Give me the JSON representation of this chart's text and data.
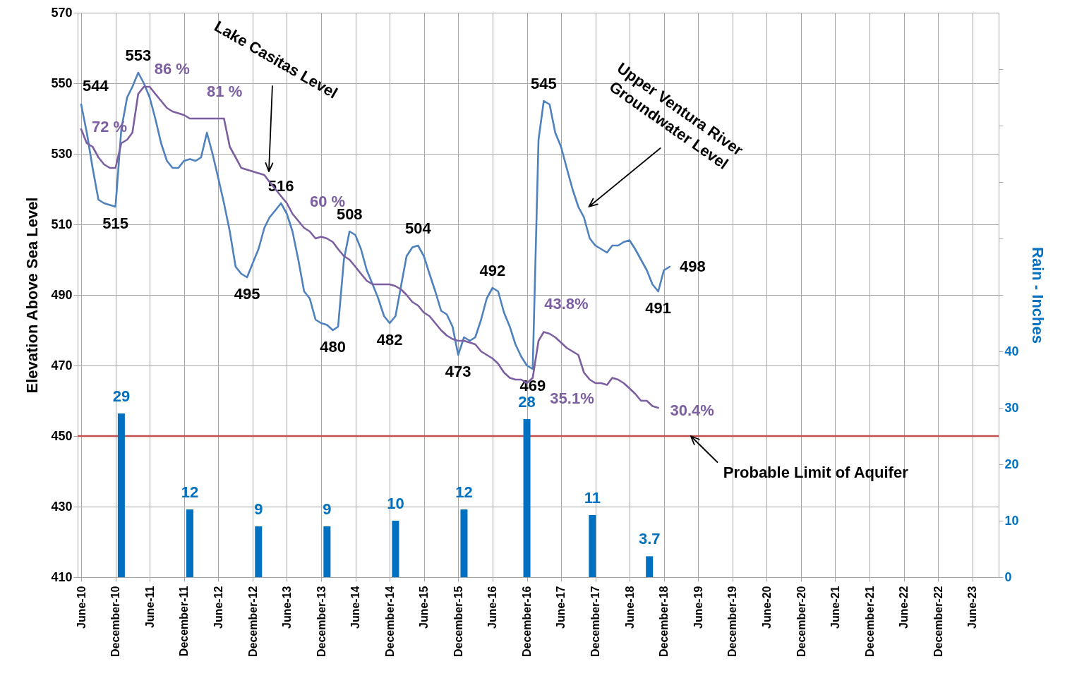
{
  "chart_data": {
    "type": "line",
    "x": [
      "2010-06",
      "2010-07",
      "2010-08",
      "2010-09",
      "2010-10",
      "2010-11",
      "2010-12",
      "2011-01",
      "2011-02",
      "2011-03",
      "2011-04",
      "2011-05",
      "2011-06",
      "2011-07",
      "2011-08",
      "2011-09",
      "2011-10",
      "2011-11",
      "2011-12",
      "2012-01",
      "2012-02",
      "2012-03",
      "2012-04",
      "2012-05",
      "2012-06",
      "2012-07",
      "2012-08",
      "2012-09",
      "2012-10",
      "2012-11",
      "2012-12",
      "2013-01",
      "2013-02",
      "2013-03",
      "2013-04",
      "2013-05",
      "2013-06",
      "2013-07",
      "2013-08",
      "2013-09",
      "2013-10",
      "2013-11",
      "2013-12",
      "2014-01",
      "2014-02",
      "2014-03",
      "2014-04",
      "2014-05",
      "2014-06",
      "2014-07",
      "2014-08",
      "2014-09",
      "2014-10",
      "2014-11",
      "2014-12",
      "2015-01",
      "2015-02",
      "2015-03",
      "2015-04",
      "2015-05",
      "2015-06",
      "2015-07",
      "2015-08",
      "2015-09",
      "2015-10",
      "2015-11",
      "2015-12",
      "2016-01",
      "2016-02",
      "2016-03",
      "2016-04",
      "2016-05",
      "2016-06",
      "2016-07",
      "2016-08",
      "2016-09",
      "2016-10",
      "2016-11",
      "2016-12",
      "2017-01",
      "2017-02",
      "2017-03",
      "2017-04",
      "2017-05",
      "2017-06",
      "2017-07",
      "2017-08",
      "2017-09",
      "2017-10",
      "2017-11",
      "2017-12",
      "2018-01",
      "2018-02",
      "2018-03",
      "2018-04",
      "2018-05",
      "2018-06",
      "2018-07",
      "2018-08",
      "2018-09",
      "2018-10",
      "2018-11",
      "2018-12",
      "2019-01"
    ],
    "series": [
      {
        "color": "#4f81bd",
        "values": [
          544,
          536,
          526,
          517,
          516,
          515.5,
          515,
          537,
          546,
          549,
          553,
          550,
          546,
          540,
          533,
          528,
          526,
          526,
          528,
          528.5,
          528,
          529,
          536,
          530,
          523,
          516,
          508,
          498,
          496,
          495,
          499,
          503,
          509,
          512,
          514,
          516,
          513,
          508,
          500,
          491,
          489,
          483,
          482,
          481.5,
          480,
          481,
          500,
          508,
          507,
          503,
          497,
          493,
          489,
          484,
          482,
          484,
          493,
          501,
          503.5,
          504,
          501,
          496,
          491,
          485.5,
          484.5,
          481,
          473,
          478,
          477,
          478,
          483,
          489,
          492,
          491,
          485,
          481,
          476,
          472.5,
          470,
          469,
          534,
          545,
          544,
          536,
          532,
          526,
          520,
          515,
          512,
          506,
          504,
          503,
          502,
          504,
          504,
          505,
          505.5,
          503,
          500,
          497,
          493,
          491,
          497,
          498
        ],
        "value_labels": [
          "544",
          null,
          null,
          null,
          null,
          null,
          "515",
          null,
          null,
          null,
          "553",
          null,
          null,
          null,
          null,
          null,
          null,
          null,
          null,
          null,
          null,
          null,
          null,
          null,
          null,
          null,
          null,
          null,
          null,
          "495",
          null,
          null,
          null,
          null,
          null,
          "516",
          null,
          null,
          null,
          null,
          null,
          null,
          null,
          null,
          "480",
          null,
          null,
          "508",
          null,
          null,
          null,
          null,
          null,
          null,
          "482",
          null,
          null,
          null,
          null,
          "504",
          null,
          null,
          null,
          null,
          null,
          null,
          "473",
          null,
          null,
          null,
          null,
          null,
          "492",
          null,
          null,
          null,
          null,
          null,
          null,
          "469",
          null,
          "545",
          null,
          null,
          null,
          null,
          null,
          null,
          null,
          null,
          null,
          null,
          null,
          null,
          null,
          null,
          null,
          null,
          null,
          null,
          null,
          "491",
          null,
          "498"
        ]
      },
      {
        "color": "#7b5fa0",
        "values": [
          537,
          533,
          532,
          529,
          527,
          526,
          526,
          533,
          534,
          536,
          547,
          549,
          549,
          547,
          545,
          543,
          542,
          541.5,
          541,
          540,
          540,
          540,
          540,
          540,
          540,
          540,
          532,
          529,
          526,
          525.5,
          525,
          524.5,
          524,
          522,
          520,
          518,
          516,
          513,
          511,
          509,
          508,
          506,
          506.5,
          506,
          505,
          503,
          501,
          500,
          498,
          496,
          494,
          493,
          493,
          493,
          493,
          492.5,
          491.5,
          490,
          488,
          487,
          485,
          484,
          482,
          480,
          478.5,
          477.5,
          477,
          477,
          476.5,
          476,
          474,
          473,
          472,
          470.5,
          468,
          466.5,
          466,
          466,
          465,
          466.5,
          477,
          479.5,
          479,
          478,
          476.5,
          475,
          474,
          473,
          468,
          466,
          465,
          465,
          464.5,
          466.5,
          466,
          465,
          463.5,
          462,
          460,
          460,
          458.5,
          458,
          null,
          null
        ]
      },
      {
        "type": "bar",
        "axis": "y2",
        "color": "#0070c0",
        "x": [
          "2011-01",
          "2012-01",
          "2013-01",
          "2014-01",
          "2015-01",
          "2016-01",
          "2016-12",
          "2017-11-15",
          "2018-09-15"
        ],
        "values": [
          29,
          12,
          9,
          9,
          10,
          12,
          28,
          11,
          3.7
        ],
        "value_labels": [
          "29",
          "12",
          "9",
          "9",
          "10",
          "12",
          "28",
          "11",
          "3.7"
        ]
      }
    ],
    "xlim": [
      "2010-06",
      "2023-10"
    ],
    "xticks": [
      {
        "value": "2010-06",
        "label": "June-10"
      },
      {
        "value": "2010-12",
        "label": "December-10"
      },
      {
        "value": "2011-06",
        "label": "June-11"
      },
      {
        "value": "2011-12",
        "label": "December-11"
      },
      {
        "value": "2012-06",
        "label": "June-12"
      },
      {
        "value": "2012-12",
        "label": "December-12"
      },
      {
        "value": "2013-06",
        "label": "June-13"
      },
      {
        "value": "2013-12",
        "label": "December-13"
      },
      {
        "value": "2014-06",
        "label": "June-14"
      },
      {
        "value": "2014-12",
        "label": "December-14"
      },
      {
        "value": "2015-06",
        "label": "June-15"
      },
      {
        "value": "2015-12",
        "label": "December-15"
      },
      {
        "value": "2016-06",
        "label": "June-16"
      },
      {
        "value": "2016-12",
        "label": "December-16"
      },
      {
        "value": "2017-06",
        "label": "June-17"
      },
      {
        "value": "2017-12",
        "label": "December-17"
      },
      {
        "value": "2018-06",
        "label": "June-18"
      },
      {
        "value": "2018-12",
        "label": "December-18"
      },
      {
        "value": "2019-06",
        "label": "June-19"
      },
      {
        "value": "2019-12",
        "label": "December-19"
      },
      {
        "value": "2020-06",
        "label": "June-20"
      },
      {
        "value": "2020-12",
        "label": "December-20"
      },
      {
        "value": "2021-06",
        "label": "June-21"
      },
      {
        "value": "2021-12",
        "label": "December-21"
      },
      {
        "value": "2022-06",
        "label": "June-22"
      },
      {
        "value": "2022-12",
        "label": "December-22"
      },
      {
        "value": "2023-06",
        "label": "June-23"
      }
    ],
    "ylim": [
      410,
      570
    ],
    "yticks": [
      410,
      430,
      450,
      470,
      490,
      510,
      530,
      550,
      570
    ],
    "y2lim": [
      0,
      100
    ],
    "y2ticks": [
      0,
      10,
      20,
      30,
      40,
      {
        "value": 50,
        "label": null
      },
      {
        "value": 60,
        "label": null
      },
      {
        "value": 70,
        "label": null
      },
      {
        "value": 80,
        "label": null
      },
      {
        "value": 90,
        "label": null
      }
    ],
    "ylabel": "Elevation Above Sea Level",
    "y2label": "Rain - Inches",
    "grid": true,
    "ref_lines": [
      {
        "axis": "y",
        "value": 450,
        "label": "Probable Limit of Aquifer",
        "color": "#c0504d"
      }
    ],
    "annotations": [
      "Lake Casitas Level",
      "Upper Ventura River Groundwater Level",
      {
        "text": "72 %",
        "x": "2010-07",
        "y": 533
      },
      {
        "text": "86 %",
        "x": "2011-05",
        "y": 549
      },
      {
        "text": "81 %",
        "x": "2012-05",
        "y": 540
      },
      {
        "text": "60 %",
        "x": "2014-03",
        "y": 503
      },
      {
        "text": "43.8%",
        "x": "2017-03",
        "y": 479.5
      },
      {
        "text": "35.1%",
        "x": "2016-12",
        "y": 465
      },
      {
        "text": "30.4%",
        "x": "2018-11",
        "y": 458
      }
    ]
  }
}
